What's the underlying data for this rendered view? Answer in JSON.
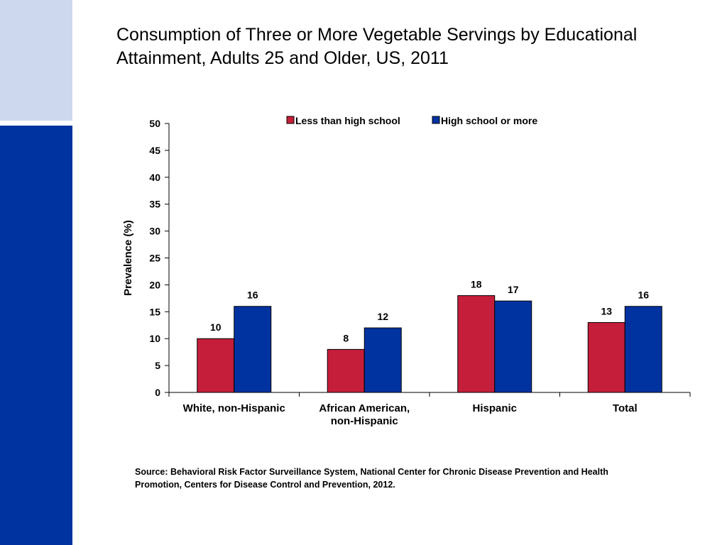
{
  "colors": {
    "sidebar_light": "#cdd8ee",
    "sidebar_dark": "#0033a0",
    "series_1": "#c41e3a",
    "series_2": "#0033a0"
  },
  "slide": {
    "title_lines": [
      "Consumption of Three or More Vegetable Servings by Educational",
      "Attainment, Adults 25 and Older, US, 2011"
    ],
    "source_lines": [
      "Source: Behavioral Risk Factor Surveillance System, National Center for Chronic Disease Prevention and Health",
      "Promotion, Centers for Disease Control and Prevention, 2012."
    ]
  },
  "chart_data": {
    "type": "bar",
    "categories": [
      [
        "White, non-Hispanic"
      ],
      [
        "African American,",
        "non-Hispanic"
      ],
      [
        "Hispanic"
      ],
      [
        "Total"
      ]
    ],
    "series": [
      {
        "name": "Less than high school",
        "values": [
          10,
          8,
          18,
          13
        ]
      },
      {
        "name": "High school or more",
        "values": [
          16,
          12,
          17,
          16
        ]
      }
    ],
    "ylabel": "Prevalence (%)",
    "xlabel": "",
    "ylim": [
      0,
      50
    ],
    "yticks": [
      0,
      5,
      10,
      15,
      20,
      25,
      30,
      35,
      40,
      45,
      50
    ],
    "grid": false,
    "legend": "top-center",
    "data_labels": true
  }
}
